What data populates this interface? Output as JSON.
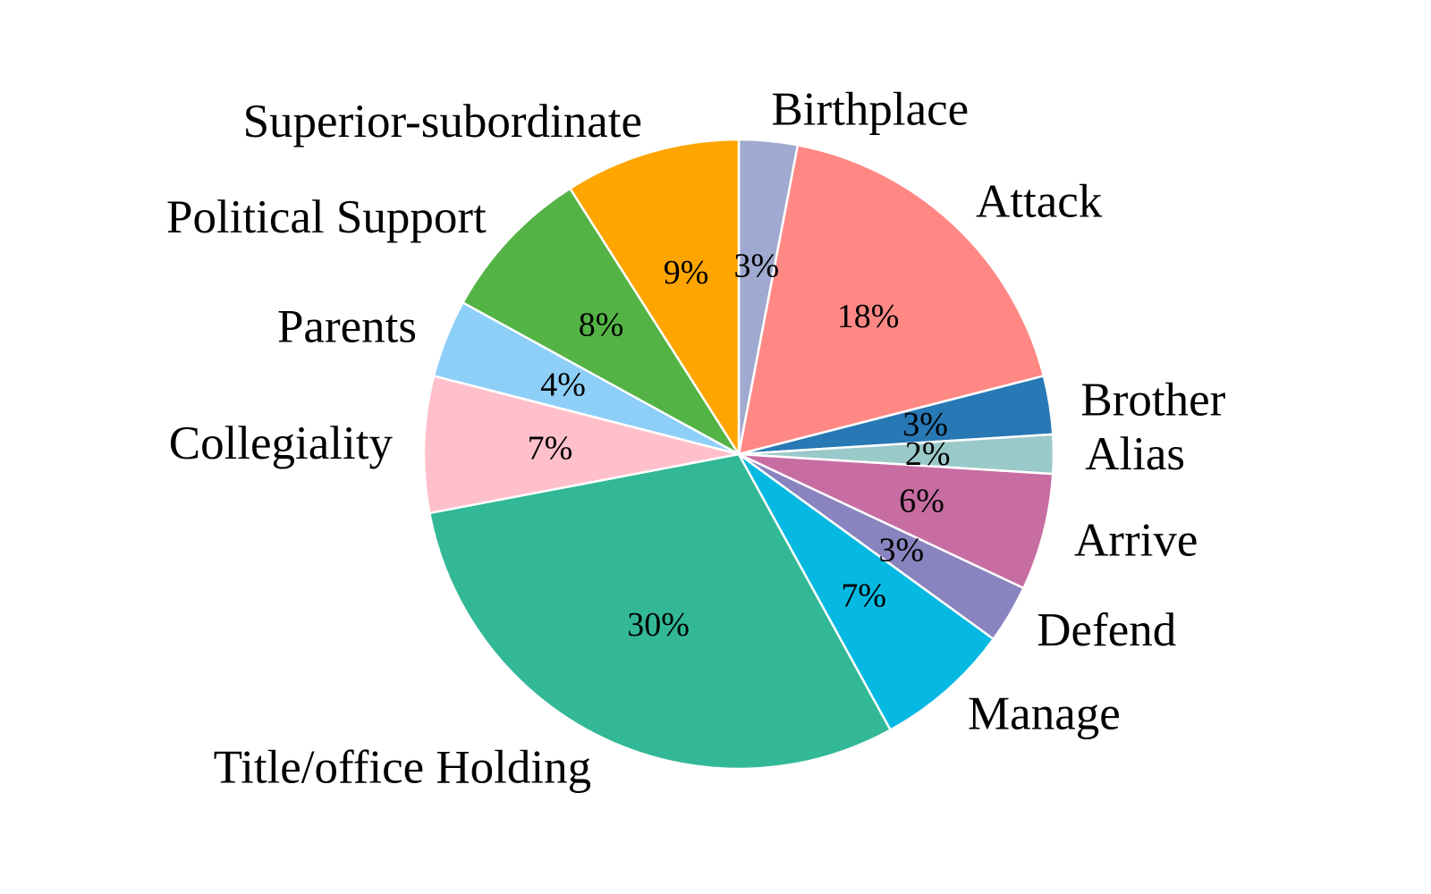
{
  "chart_data": {
    "type": "pie",
    "title": "",
    "start_angle_deg": 90,
    "direction": "clockwise",
    "edge_color": "#ffffff",
    "slices": [
      {
        "label": "Birthplace",
        "value": 3,
        "value_label": "3%",
        "color": "#a0a9cf"
      },
      {
        "label": "Attack",
        "value": 18,
        "value_label": "18%",
        "color": "#ff8884"
      },
      {
        "label": "Brother",
        "value": 3,
        "value_label": "3%",
        "color": "#2878b5"
      },
      {
        "label": "Alias",
        "value": 2,
        "value_label": "2%",
        "color": "#9ac9c9"
      },
      {
        "label": "Arrive",
        "value": 6,
        "value_label": "6%",
        "color": "#c76da2"
      },
      {
        "label": "Defend",
        "value": 3,
        "value_label": "3%",
        "color": "#8983bf"
      },
      {
        "label": "Manage",
        "value": 7,
        "value_label": "7%",
        "color": "#05b9e2"
      },
      {
        "label": "Title/office Holding",
        "value": 30,
        "value_label": "30%",
        "color": "#32b897"
      },
      {
        "label": "Collegiality",
        "value": 7,
        "value_label": "7%",
        "color": "#ffc0cb"
      },
      {
        "label": "Parents",
        "value": 4,
        "value_label": "4%",
        "color": "#8ecff8"
      },
      {
        "label": "Political Support",
        "value": 8,
        "value_label": "8%",
        "color": "#54b345"
      },
      {
        "label": "Superior-subordinate",
        "value": 9,
        "value_label": "9%",
        "color": "#ffa500"
      }
    ]
  }
}
